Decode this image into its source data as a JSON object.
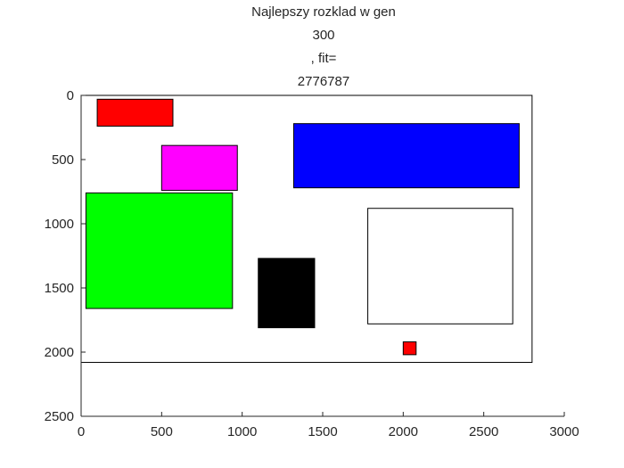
{
  "chart_data": {
    "type": "rectangles",
    "title_lines": [
      "Najlepszy rozklad w gen",
      "300",
      ", fit=",
      "2776787"
    ],
    "xlabel": "",
    "ylabel": "",
    "xlim": [
      0,
      3000
    ],
    "ylim": [
      0,
      2500
    ],
    "y_reversed": true,
    "x_ticks": [
      0,
      500,
      1000,
      1500,
      2000,
      2500,
      3000
    ],
    "y_ticks": [
      0,
      500,
      1000,
      1500,
      2000,
      2500
    ],
    "grid": false,
    "container": {
      "x": 0,
      "y": 0,
      "width": 2800,
      "height": 2080,
      "color": "#ffffff"
    },
    "rectangles": [
      {
        "name": "red",
        "x": 100,
        "y": 30,
        "width": 470,
        "height": 210,
        "color": "#ff0000"
      },
      {
        "name": "magenta",
        "x": 500,
        "y": 390,
        "width": 470,
        "height": 350,
        "color": "#ff00ff"
      },
      {
        "name": "green",
        "x": 30,
        "y": 760,
        "width": 910,
        "height": 900,
        "color": "#00ff00"
      },
      {
        "name": "black",
        "x": 1100,
        "y": 1270,
        "width": 350,
        "height": 540,
        "color": "#000000"
      },
      {
        "name": "blue",
        "x": 1320,
        "y": 220,
        "width": 1400,
        "height": 500,
        "color": "#0000ff"
      },
      {
        "name": "white",
        "x": 1780,
        "y": 880,
        "width": 900,
        "height": 900,
        "color": "#ffffff"
      },
      {
        "name": "small-red",
        "x": 2000,
        "y": 1920,
        "width": 80,
        "height": 100,
        "color": "#ff0000"
      }
    ]
  }
}
